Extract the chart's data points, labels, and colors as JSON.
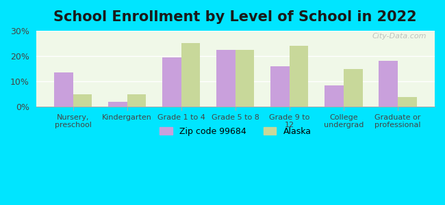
{
  "title": "School Enrollment by Level of School in 2022",
  "categories": [
    "Nursery,\npreschool",
    "Kindergarten",
    "Grade 1 to 4",
    "Grade 5 to 8",
    "Grade 9 to\n12",
    "College\nundergrad",
    "Graduate or\nprofessional"
  ],
  "zip_values": [
    13.5,
    2.0,
    19.5,
    22.5,
    16.0,
    8.5,
    18.0
  ],
  "alaska_values": [
    5.0,
    5.0,
    25.0,
    22.5,
    24.0,
    15.0,
    4.0
  ],
  "zip_color": "#c9a0dc",
  "alaska_color": "#c8d89a",
  "background_outer": "#00e5ff",
  "background_inner": "#f0f8e8",
  "ylim": [
    0,
    30
  ],
  "yticks": [
    0,
    10,
    20,
    30
  ],
  "ytick_labels": [
    "0%",
    "10%",
    "20%",
    "30%"
  ],
  "title_fontsize": 15,
  "legend_labels": [
    "Zip code 99684",
    "Alaska"
  ],
  "watermark": "City-Data.com"
}
